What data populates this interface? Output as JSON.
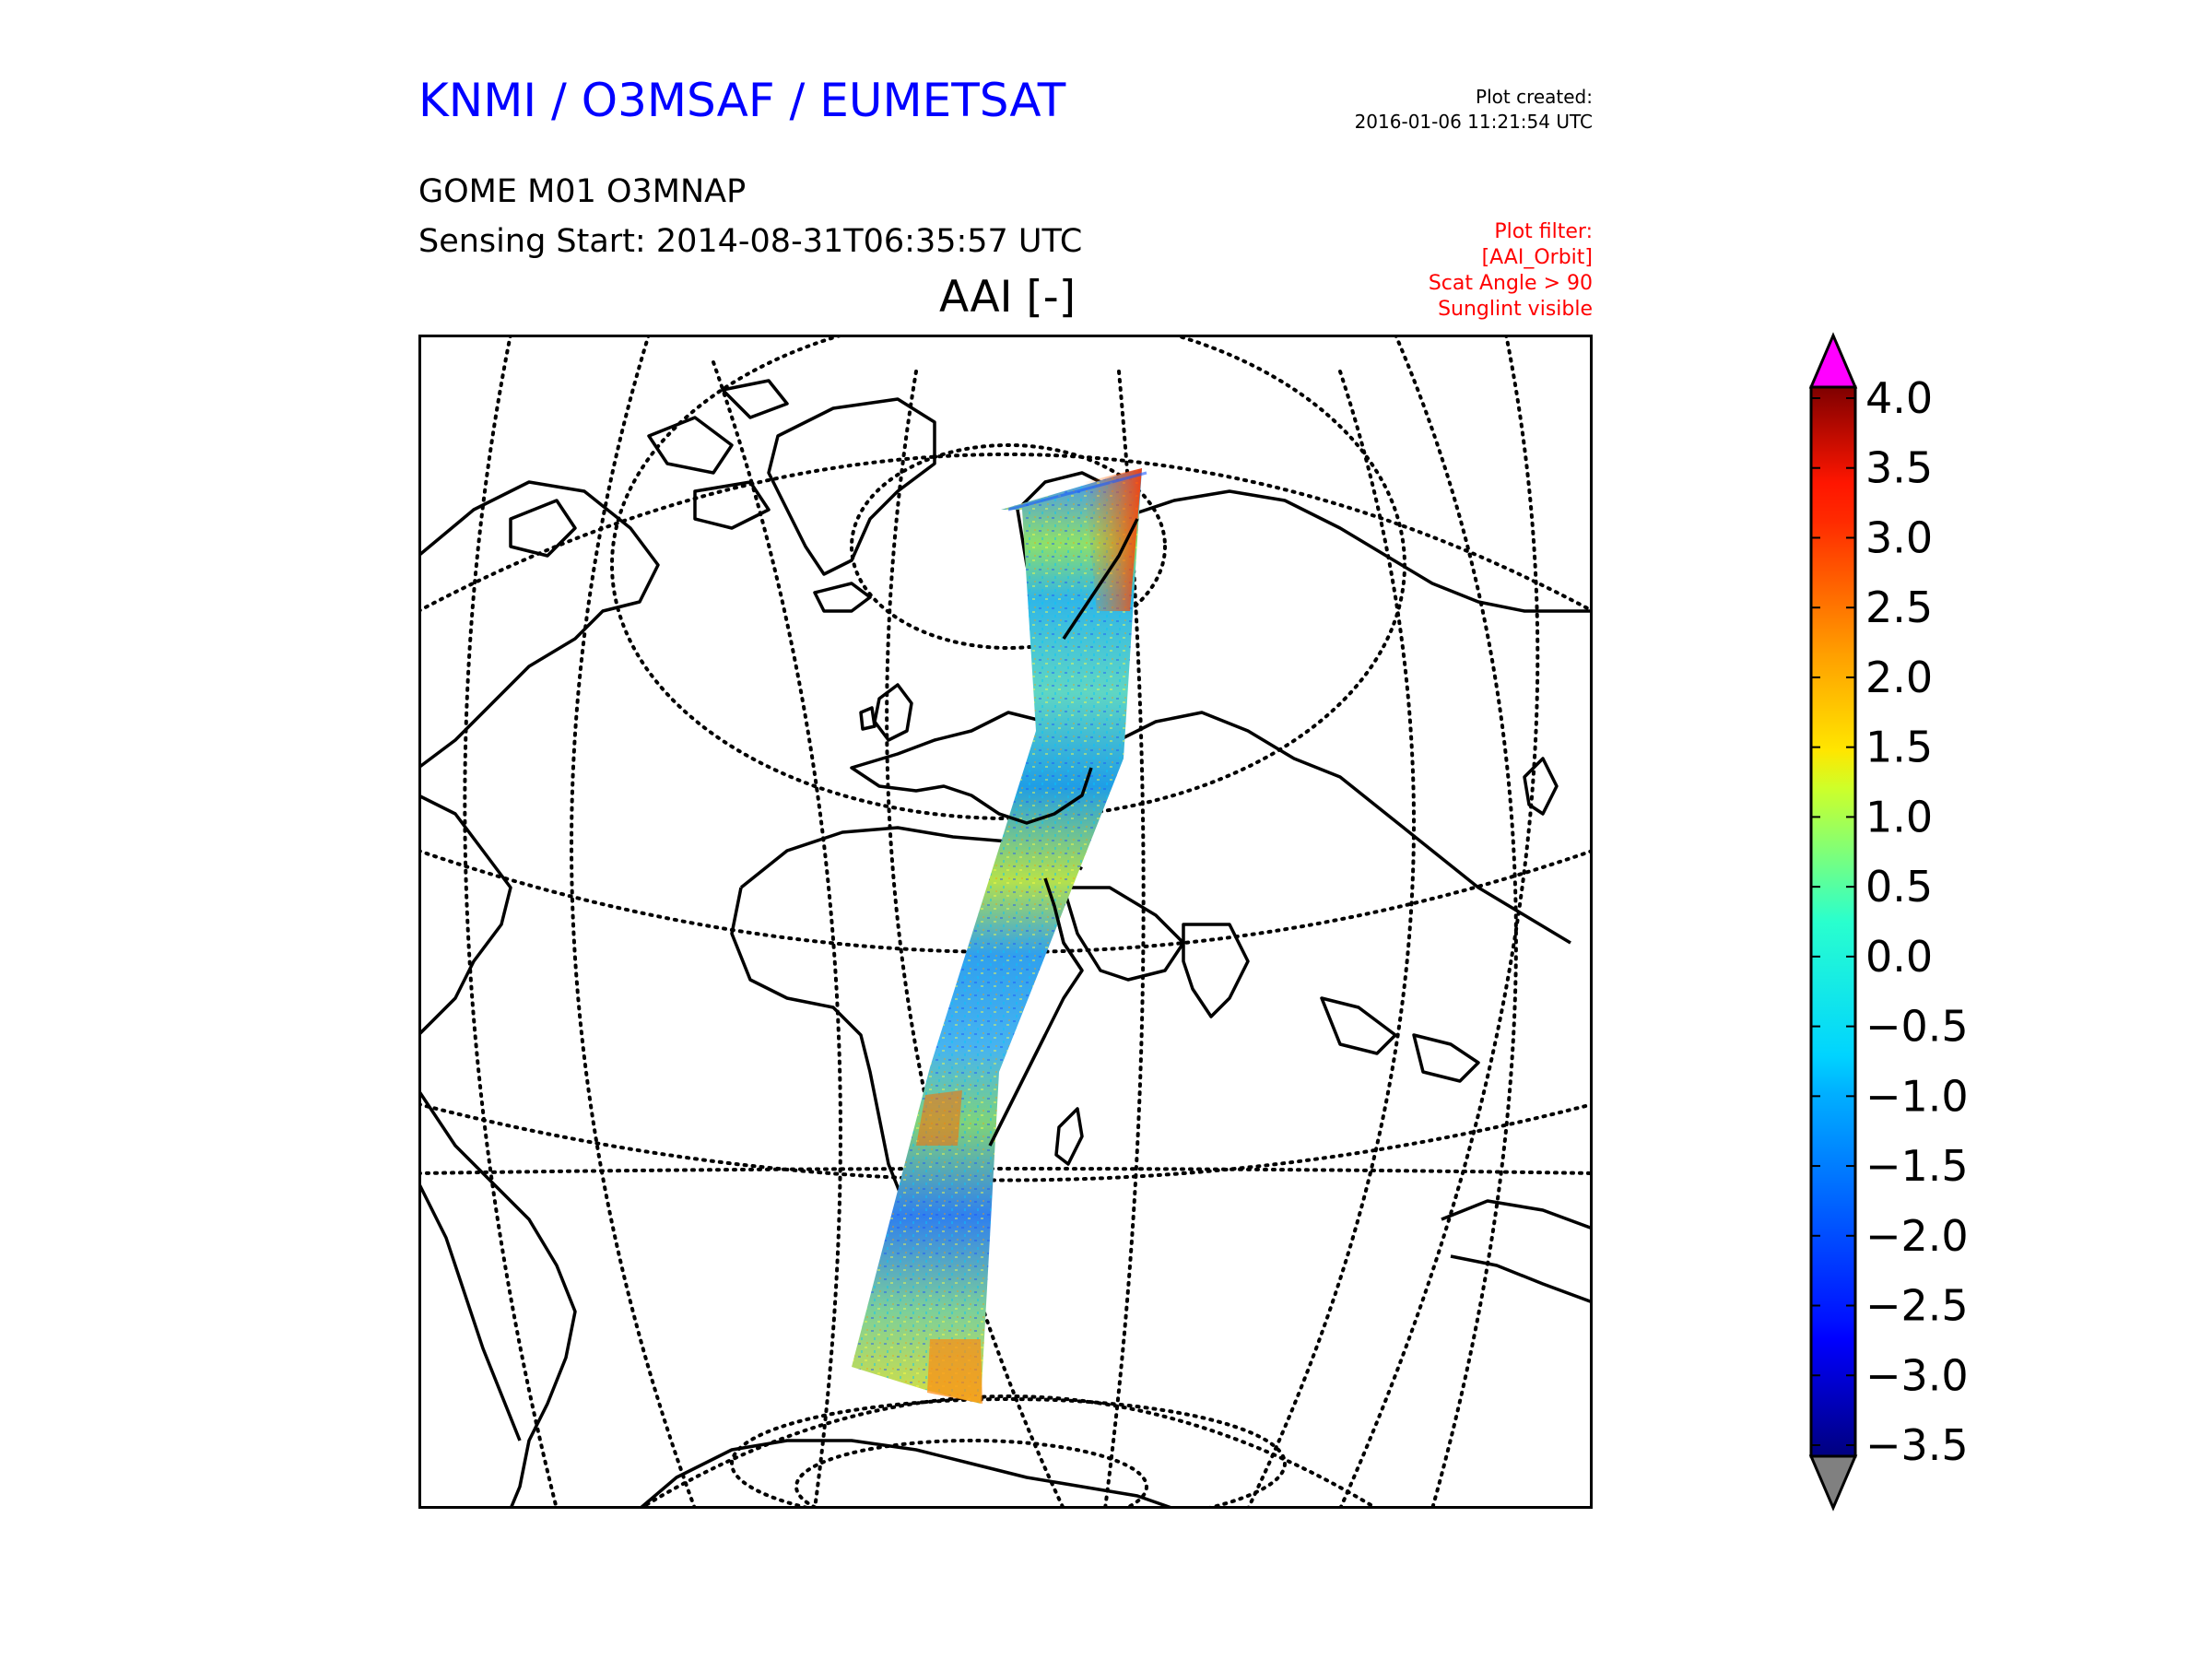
{
  "header": {
    "title": "KNMI / O3MSAF / EUMETSAT",
    "plot_created_label": "Plot created:",
    "plot_created_value": "2016-01-06 11:21:54 UTC",
    "product": "GOME M01 O3MNAP",
    "sensing_start": "Sensing Start: 2014-08-31T06:35:57 UTC",
    "filter_lines": [
      "Plot filter:",
      "[AAI_Orbit]",
      "Scat Angle > 90",
      "Sunglint visible"
    ]
  },
  "map": {
    "title": "AAI [-]",
    "projection": "orthographic (centred on Africa/Europe)",
    "graticule": "dotted",
    "coastline_color": "#000000",
    "swath": "satellite orbit swath, AAI values colour-coded"
  },
  "colorbar": {
    "min": -3.5,
    "max": 4.0,
    "ticks": [
      "4.0",
      "3.5",
      "3.0",
      "2.5",
      "2.0",
      "1.5",
      "1.0",
      "0.5",
      "0.0",
      "−0.5",
      "−1.0",
      "−1.5",
      "−2.0",
      "−2.5",
      "−3.0",
      "−3.5"
    ],
    "over_color": "#ff00ff",
    "under_color": "#808080",
    "colormap": "jet"
  }
}
